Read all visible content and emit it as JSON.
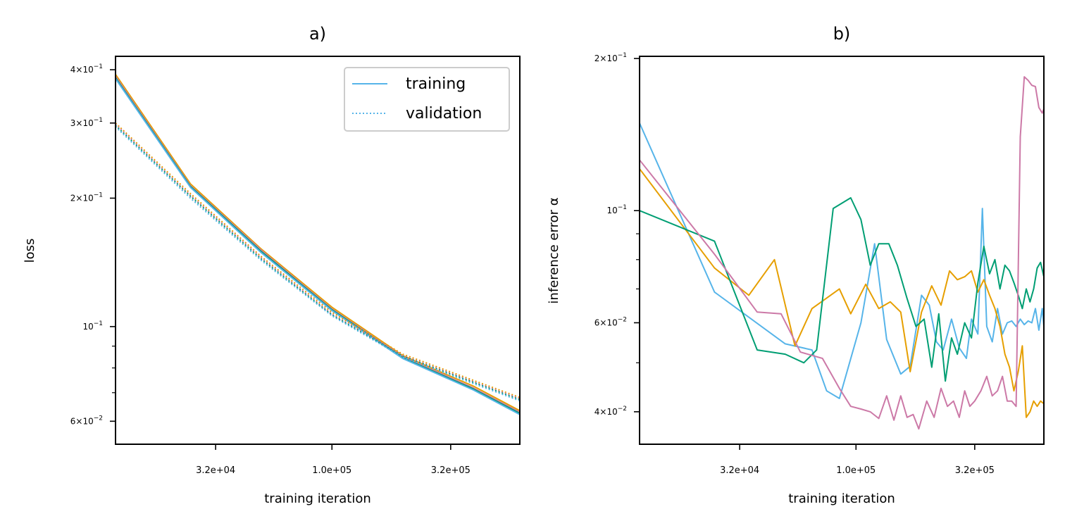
{
  "figure": {
    "colors": [
      "#56b4e9",
      "#e69f00",
      "#009e73",
      "#cc79a7",
      "#d55e00",
      "#0072b2"
    ]
  },
  "chart_data": [
    {
      "type": "line",
      "title": "a)",
      "xlabel": "training iteration",
      "ylabel": "loss",
      "xscale": "log",
      "yscale": "log",
      "xlim": [
        12000,
        630000
      ],
      "ylim": [
        0.053,
        0.43
      ],
      "xticks": [
        {
          "value": 32000,
          "label": "3.2e+04"
        },
        {
          "value": 100000,
          "label": "1.0e+05"
        },
        {
          "value": 320000,
          "label": "3.2e+05"
        }
      ],
      "yticks": [
        {
          "value": 0.4,
          "base": "4",
          "exp": "-1"
        },
        {
          "value": 0.3,
          "base": "3",
          "exp": "-1"
        },
        {
          "value": 0.2,
          "base": "2",
          "exp": "-1"
        },
        {
          "value": 0.1,
          "base": "",
          "exp": "-1"
        },
        {
          "value": 0.06,
          "base": "6",
          "exp": "-2"
        }
      ],
      "yminor": [
        0.09,
        0.08,
        0.07
      ],
      "legend": {
        "position": "top-right",
        "entries": [
          {
            "label": "training",
            "style": "solid"
          },
          {
            "label": "validation",
            "style": "dotted"
          }
        ]
      },
      "series": [
        {
          "color": "#e69f00",
          "style": "solid",
          "x": [
            12000,
            25000,
            50000,
            100000,
            200000,
            400000,
            630000
          ],
          "y": [
            0.39,
            0.216,
            0.152,
            0.111,
            0.0855,
            0.0725,
            0.0635
          ]
        },
        {
          "color": "#cc79a7",
          "style": "solid",
          "x": [
            12000,
            25000,
            50000,
            100000,
            200000,
            400000,
            630000
          ],
          "y": [
            0.386,
            0.214,
            0.151,
            0.11,
            0.085,
            0.0718,
            0.063
          ]
        },
        {
          "color": "#009e73",
          "style": "solid",
          "x": [
            12000,
            25000,
            50000,
            100000,
            200000,
            400000,
            630000
          ],
          "y": [
            0.383,
            0.213,
            0.15,
            0.1095,
            0.0845,
            0.0714,
            0.0626
          ]
        },
        {
          "color": "#56b4e9",
          "style": "solid",
          "x": [
            12000,
            25000,
            50000,
            100000,
            200000,
            400000,
            630000
          ],
          "y": [
            0.381,
            0.212,
            0.149,
            0.109,
            0.0842,
            0.071,
            0.0622
          ]
        },
        {
          "color": "#e69f00",
          "style": "dotted",
          "x": [
            12000,
            25000,
            50000,
            100000,
            200000,
            400000,
            630000
          ],
          "y": [
            0.3,
            0.205,
            0.146,
            0.108,
            0.0862,
            0.0748,
            0.0682
          ]
        },
        {
          "color": "#cc79a7",
          "style": "dotted",
          "x": [
            12000,
            25000,
            50000,
            100000,
            200000,
            400000,
            630000
          ],
          "y": [
            0.298,
            0.203,
            0.145,
            0.107,
            0.0856,
            0.0743,
            0.0678
          ]
        },
        {
          "color": "#009e73",
          "style": "dotted",
          "x": [
            12000,
            25000,
            50000,
            100000,
            200000,
            400000,
            630000
          ],
          "y": [
            0.296,
            0.202,
            0.144,
            0.1065,
            0.0852,
            0.074,
            0.0674
          ]
        },
        {
          "color": "#56b4e9",
          "style": "dotted",
          "x": [
            12000,
            25000,
            50000,
            100000,
            200000,
            400000,
            630000
          ],
          "y": [
            0.294,
            0.2,
            0.143,
            0.106,
            0.0848,
            0.0735,
            0.067
          ]
        }
      ]
    },
    {
      "type": "line",
      "title": "b)",
      "xlabel": "training iteration",
      "ylabel": "inference error α",
      "xscale": "log",
      "yscale": "log",
      "xlim": [
        12000,
        630000
      ],
      "ylim": [
        0.0345,
        0.202
      ],
      "xticks": [
        {
          "value": 32000,
          "label": "3.2e+04"
        },
        {
          "value": 100000,
          "label": "1.0e+05"
        },
        {
          "value": 320000,
          "label": "3.2e+05"
        }
      ],
      "yticks": [
        {
          "value": 0.2,
          "base": "2",
          "exp": "-1"
        },
        {
          "value": 0.1,
          "base": "",
          "exp": "-1"
        },
        {
          "value": 0.06,
          "base": "6",
          "exp": "-2"
        },
        {
          "value": 0.04,
          "base": "4",
          "exp": "-2"
        }
      ],
      "yminor": [
        0.09,
        0.08,
        0.07,
        0.05
      ],
      "series": [
        {
          "color": "#56b4e9",
          "x": [
            12000,
            25000,
            50000,
            65000,
            75000,
            85000,
            105000,
            120000,
            135000,
            155000,
            170000,
            190000,
            205000,
            220000,
            235000,
            255000,
            275000,
            295000,
            310000,
            330000,
            345000,
            360000,
            380000,
            400000,
            420000,
            440000,
            460000,
            480000,
            500000,
            520000,
            540000,
            560000,
            580000,
            600000,
            620000,
            630000
          ],
          "y": [
            0.149,
            0.069,
            0.0545,
            0.053,
            0.044,
            0.0425,
            0.06,
            0.086,
            0.0556,
            0.0475,
            0.0492,
            0.068,
            0.065,
            0.055,
            0.053,
            0.061,
            0.0535,
            0.051,
            0.061,
            0.057,
            0.101,
            0.059,
            0.055,
            0.064,
            0.057,
            0.06,
            0.0605,
            0.059,
            0.061,
            0.0595,
            0.0605,
            0.06,
            0.064,
            0.058,
            0.064,
            0.059
          ]
        },
        {
          "color": "#e69f00",
          "x": [
            12000,
            25000,
            35000,
            45000,
            55000,
            65000,
            85000,
            95000,
            110000,
            125000,
            140000,
            155000,
            170000,
            190000,
            210000,
            230000,
            250000,
            270000,
            290000,
            310000,
            330000,
            350000,
            370000,
            390000,
            410000,
            430000,
            450000,
            470000,
            490000,
            510000,
            530000,
            550000,
            570000,
            590000,
            610000,
            630000
          ],
          "y": [
            0.121,
            0.077,
            0.068,
            0.08,
            0.054,
            0.064,
            0.07,
            0.0625,
            0.0715,
            0.064,
            0.066,
            0.063,
            0.048,
            0.063,
            0.071,
            0.065,
            0.076,
            0.073,
            0.074,
            0.076,
            0.069,
            0.073,
            0.068,
            0.064,
            0.059,
            0.052,
            0.049,
            0.044,
            0.048,
            0.054,
            0.039,
            0.04,
            0.042,
            0.041,
            0.042,
            0.0415
          ]
        },
        {
          "color": "#009e73",
          "x": [
            12000,
            25000,
            38000,
            50000,
            60000,
            68000,
            80000,
            95000,
            105000,
            115000,
            125000,
            138000,
            150000,
            165000,
            180000,
            195000,
            210000,
            225000,
            240000,
            255000,
            270000,
            290000,
            310000,
            330000,
            350000,
            370000,
            390000,
            410000,
            430000,
            450000,
            470000,
            490000,
            510000,
            530000,
            550000,
            570000,
            590000,
            610000,
            630000
          ],
          "y": [
            0.1,
            0.087,
            0.053,
            0.052,
            0.05,
            0.053,
            0.101,
            0.106,
            0.096,
            0.078,
            0.086,
            0.086,
            0.078,
            0.067,
            0.059,
            0.061,
            0.049,
            0.0625,
            0.046,
            0.056,
            0.052,
            0.06,
            0.056,
            0.072,
            0.085,
            0.075,
            0.08,
            0.07,
            0.078,
            0.076,
            0.072,
            0.068,
            0.064,
            0.07,
            0.066,
            0.07,
            0.077,
            0.079,
            0.074
          ]
        },
        {
          "color": "#cc79a7",
          "x": [
            12000,
            25000,
            38000,
            48000,
            58000,
            72000,
            85000,
            95000,
            105000,
            115000,
            125000,
            135000,
            145000,
            155000,
            165000,
            175000,
            185000,
            200000,
            215000,
            230000,
            245000,
            260000,
            275000,
            290000,
            305000,
            320000,
            340000,
            360000,
            380000,
            400000,
            420000,
            440000,
            460000,
            480000,
            500000,
            520000,
            540000,
            560000,
            580000,
            600000,
            620000,
            630000
          ],
          "y": [
            0.126,
            0.082,
            0.063,
            0.0625,
            0.0525,
            0.051,
            0.0445,
            0.041,
            0.0405,
            0.04,
            0.0388,
            0.043,
            0.0385,
            0.043,
            0.039,
            0.0395,
            0.037,
            0.042,
            0.039,
            0.0445,
            0.041,
            0.042,
            0.039,
            0.044,
            0.041,
            0.042,
            0.044,
            0.047,
            0.043,
            0.044,
            0.047,
            0.042,
            0.042,
            0.041,
            0.14,
            0.184,
            0.181,
            0.177,
            0.176,
            0.16,
            0.156,
            0.159
          ]
        }
      ]
    }
  ]
}
